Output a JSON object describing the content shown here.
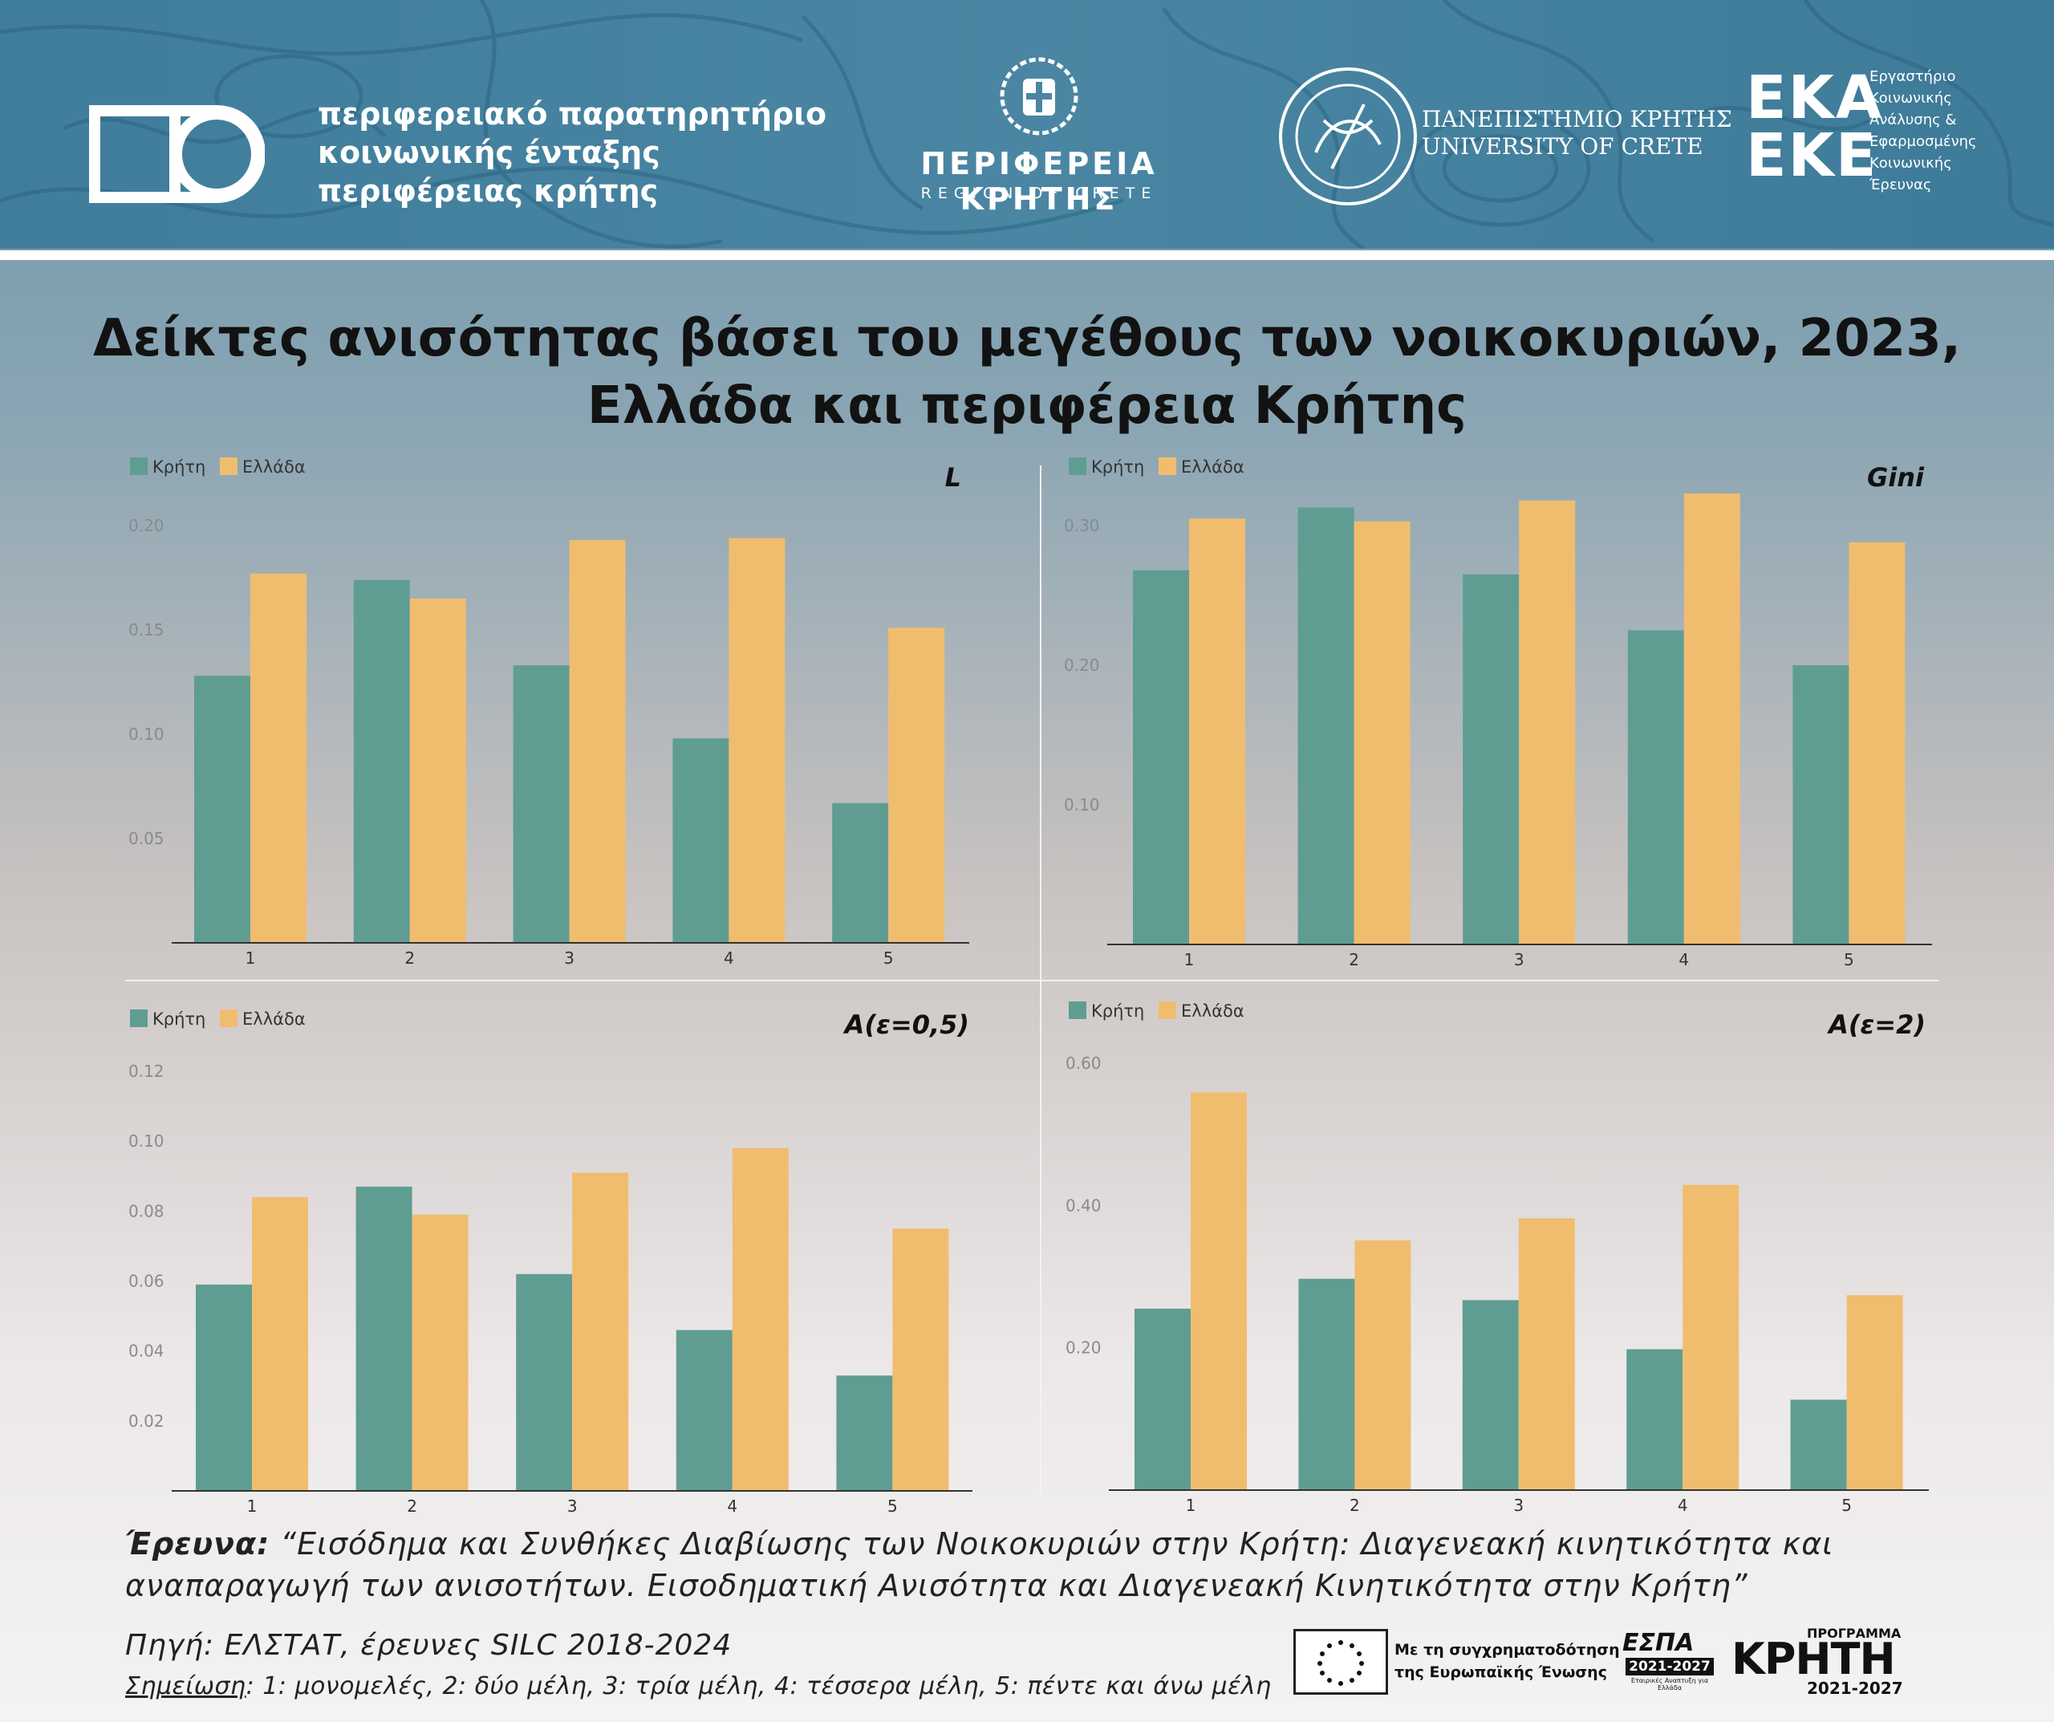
{
  "header": {
    "observatory_line1": "περιφερειακό παρατηρητήριο",
    "observatory_line2": "κοινωνικής ένταξης",
    "observatory_line3": "περιφέρειας κρήτης",
    "region_name": "ΠΕΡΙΦΕΡΕΙΑ ΚΡΗΤΗΣ",
    "region_sub": "REGION OF CRETE",
    "uni_gr": "ΠΑΝΕΠΙΣΤΗΜΙΟ ΚΡΗΤΗΣ",
    "uni_en": "UNIVERSITY OF CRETE",
    "ekaeke_line1": "ΕΚΑ",
    "ekaeke_line2": "ΕΚΕ",
    "ekaeke_desc": [
      "Εργαστήριο",
      "Κοινωνικής",
      "Ανάλυσης &",
      "Εφαρμοσμένης",
      "Κοινωνικής",
      "Έρευνας"
    ]
  },
  "title_line1": "Δείκτες ανισότητας βάσει του μεγέθους των νοικοκυριών, 2023,",
  "title_line2": "Ελλάδα και περιφέρεια Κρήτης",
  "colors": {
    "crete": "#5f9d92",
    "greece": "#f0bd6f"
  },
  "chart_data": [
    {
      "type": "bar",
      "title": "L",
      "categories": [
        "1",
        "2",
        "3",
        "4",
        "5"
      ],
      "series": [
        {
          "name": "Κρήτη",
          "values": [
            0.128,
            0.174,
            0.133,
            0.098,
            0.067
          ]
        },
        {
          "name": "Ελλάδα",
          "values": [
            0.177,
            0.165,
            0.193,
            0.194,
            0.151
          ]
        }
      ],
      "yticks": [
        0.05,
        0.1,
        0.15,
        0.2
      ],
      "ytick_labels": [
        "0.05",
        "0.10",
        "0.15",
        "0.20"
      ],
      "ylim": [
        0,
        0.2
      ]
    },
    {
      "type": "bar",
      "title": "Gini",
      "categories": [
        "1",
        "2",
        "3",
        "4",
        "5"
      ],
      "series": [
        {
          "name": "Κρήτη",
          "values": [
            0.268,
            0.313,
            0.265,
            0.225,
            0.2
          ]
        },
        {
          "name": "Ελλάδα",
          "values": [
            0.305,
            0.303,
            0.318,
            0.323,
            0.288
          ]
        }
      ],
      "yticks": [
        0.1,
        0.2,
        0.3
      ],
      "ytick_labels": [
        "0.10",
        "0.20",
        "0.30"
      ],
      "ylim": [
        0,
        0.3
      ]
    },
    {
      "type": "bar",
      "title": "A(ε=0,5)",
      "categories": [
        "1",
        "2",
        "3",
        "4",
        "5"
      ],
      "series": [
        {
          "name": "Κρήτη",
          "values": [
            0.059,
            0.087,
            0.062,
            0.046,
            0.033
          ]
        },
        {
          "name": "Ελλάδα",
          "values": [
            0.084,
            0.079,
            0.091,
            0.098,
            0.075
          ]
        }
      ],
      "yticks": [
        0.02,
        0.04,
        0.06,
        0.08,
        0.1,
        0.12
      ],
      "ytick_labels": [
        "0.02",
        "0.04",
        "0.06",
        "0.08",
        "0.10",
        "0.12"
      ],
      "ylim": [
        0,
        0.12
      ]
    },
    {
      "type": "bar",
      "title": "A(ε=2)",
      "categories": [
        "1",
        "2",
        "3",
        "4",
        "5"
      ],
      "series": [
        {
          "name": "Κρήτη",
          "values": [
            0.255,
            0.297,
            0.267,
            0.198,
            0.127
          ]
        },
        {
          "name": "Ελλάδα",
          "values": [
            0.559,
            0.351,
            0.382,
            0.429,
            0.274
          ]
        }
      ],
      "yticks": [
        0.2,
        0.4,
        0.6
      ],
      "ytick_labels": [
        "0.20",
        "0.40",
        "0.60"
      ],
      "ylim": [
        0,
        0.6
      ]
    }
  ],
  "footer": {
    "research_label": "Έρευνα:",
    "research_text": " “Εισόδημα και Συνθήκες Διαβίωσης των Νοικοκυριών στην Κρήτη: Διαγενεακή κινητικότητα και αναπαραγωγή των ανισοτήτων. Εισοδηματική Ανισότητα και Διαγενεακή  Κινητικότητα στην Κρήτη”",
    "source": "Πηγή: ΕΛΣΤΑΤ, έρευνες SILC 2018-2024",
    "note_label": "Σημείωση",
    "note_text": ": 1: μονομελές, 2: δύο μέλη, 3: τρία μέλη, 4: τέσσερα μέλη, 5: πέντε και άνω μέλη",
    "eu_line1": "Με τη συγχρηματοδότηση",
    "eu_line2": "της Ευρωπαϊκής Ένωσης",
    "espa_title": "ΕΣΠΑ",
    "espa_years": "2021-2027",
    "espa_sub": "Εταιρικές Αναπτυξη για Ελλάδα",
    "program_label": "ΠΡΟΓΡΑΜΜΑ",
    "program_name": "ΚΡΗΤΗ",
    "program_years": "2021-2027"
  }
}
